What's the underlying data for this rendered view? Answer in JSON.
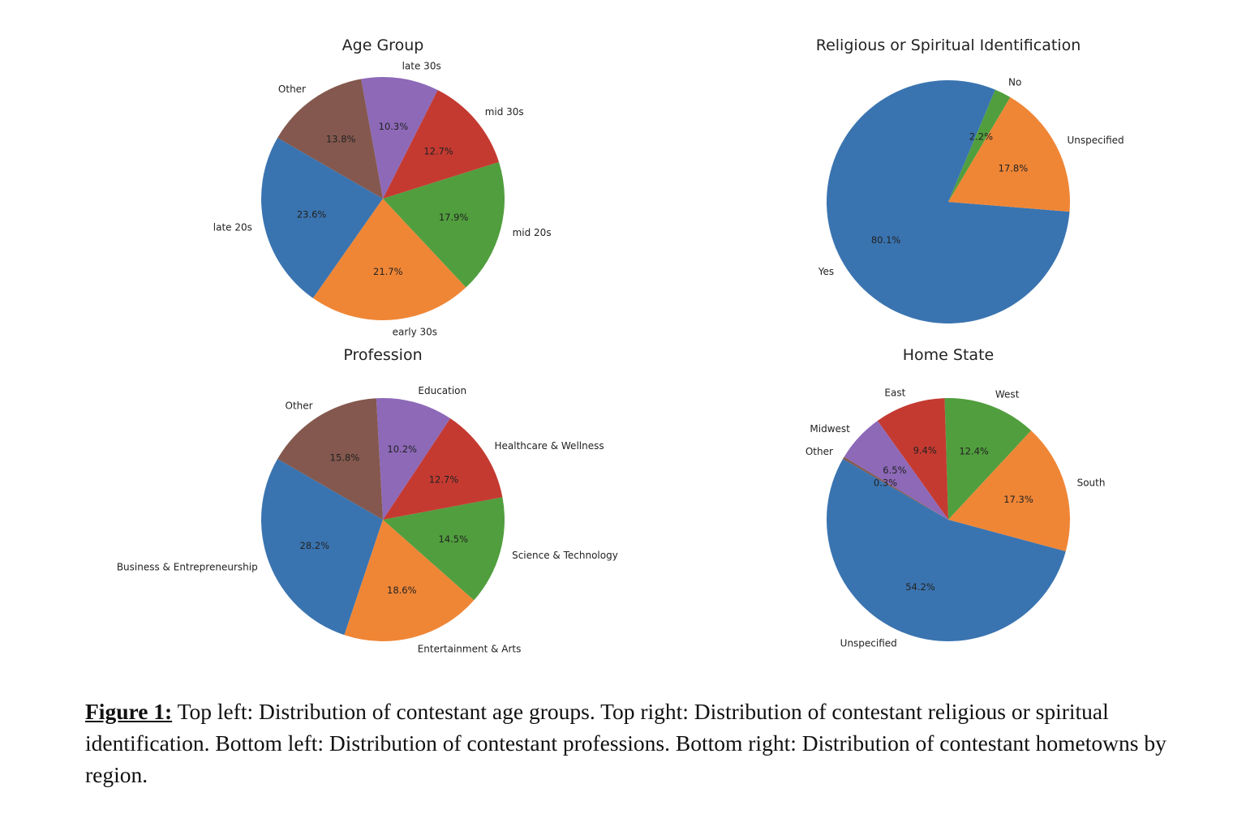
{
  "colors": {
    "blue": "#3a74b0",
    "orange": "#ef8636",
    "green": "#519e3e",
    "red": "#c43a31",
    "purple": "#8d69b8",
    "brown": "#84584e"
  },
  "chart_data": [
    {
      "type": "pie",
      "title": "Age Group",
      "slices": [
        {
          "label": "late 20s",
          "value": 23.6,
          "pct_label": "23.6%",
          "color": "#3a74b0"
        },
        {
          "label": "early 30s",
          "value": 21.7,
          "pct_label": "21.7%",
          "color": "#ef8636"
        },
        {
          "label": "mid 20s",
          "value": 17.9,
          "pct_label": "17.9%",
          "color": "#519e3e"
        },
        {
          "label": "mid 30s",
          "value": 12.7,
          "pct_label": "12.7%",
          "color": "#c43a31"
        },
        {
          "label": "late 30s",
          "value": 10.3,
          "pct_label": "10.3%",
          "color": "#8d69b8"
        },
        {
          "label": "Other",
          "value": 13.8,
          "pct_label": "13.8%",
          "color": "#84584e"
        }
      ]
    },
    {
      "type": "pie",
      "title": "Religious or Spiritual Identification",
      "slices": [
        {
          "label": "Yes",
          "value": 80.1,
          "pct_label": "80.1%",
          "color": "#3a74b0"
        },
        {
          "label": "Unspecified",
          "value": 17.8,
          "pct_label": "17.8%",
          "color": "#ef8636"
        },
        {
          "label": "No",
          "value": 2.2,
          "pct_label": "2.2%",
          "color": "#519e3e"
        }
      ]
    },
    {
      "type": "pie",
      "title": "Profession",
      "slices": [
        {
          "label": "Business & Entrepreneurship",
          "value": 28.2,
          "pct_label": "28.2%",
          "color": "#3a74b0"
        },
        {
          "label": "Entertainment & Arts",
          "value": 18.6,
          "pct_label": "18.6%",
          "color": "#ef8636"
        },
        {
          "label": "Science & Technology",
          "value": 14.5,
          "pct_label": "14.5%",
          "color": "#519e3e"
        },
        {
          "label": "Healthcare & Wellness",
          "value": 12.7,
          "pct_label": "12.7%",
          "color": "#c43a31"
        },
        {
          "label": "Education",
          "value": 10.2,
          "pct_label": "10.2%",
          "color": "#8d69b8"
        },
        {
          "label": "Other",
          "value": 15.8,
          "pct_label": "15.8%",
          "color": "#84584e"
        }
      ]
    },
    {
      "type": "pie",
      "title": "Home State",
      "slices": [
        {
          "label": "Unspecified",
          "value": 54.2,
          "pct_label": "54.2%",
          "color": "#3a74b0"
        },
        {
          "label": "South",
          "value": 17.3,
          "pct_label": "17.3%",
          "color": "#ef8636"
        },
        {
          "label": "West",
          "value": 12.4,
          "pct_label": "12.4%",
          "color": "#519e3e"
        },
        {
          "label": "East",
          "value": 9.4,
          "pct_label": "9.4%",
          "color": "#c43a31"
        },
        {
          "label": "Midwest",
          "value": 6.5,
          "pct_label": "6.5%",
          "color": "#8d69b8"
        },
        {
          "label": "Other",
          "value": 0.3,
          "pct_label": "0.3%",
          "color": "#84584e"
        }
      ]
    }
  ],
  "caption": {
    "heading": "Figure 1:",
    "text": " Top left: Distribution of contestant age groups. Top right: Distribution of contestant religious or spiritual identification. Bottom left: Distribution of contestant professions. Bottom right: Distribution of contestant hometowns by region."
  }
}
